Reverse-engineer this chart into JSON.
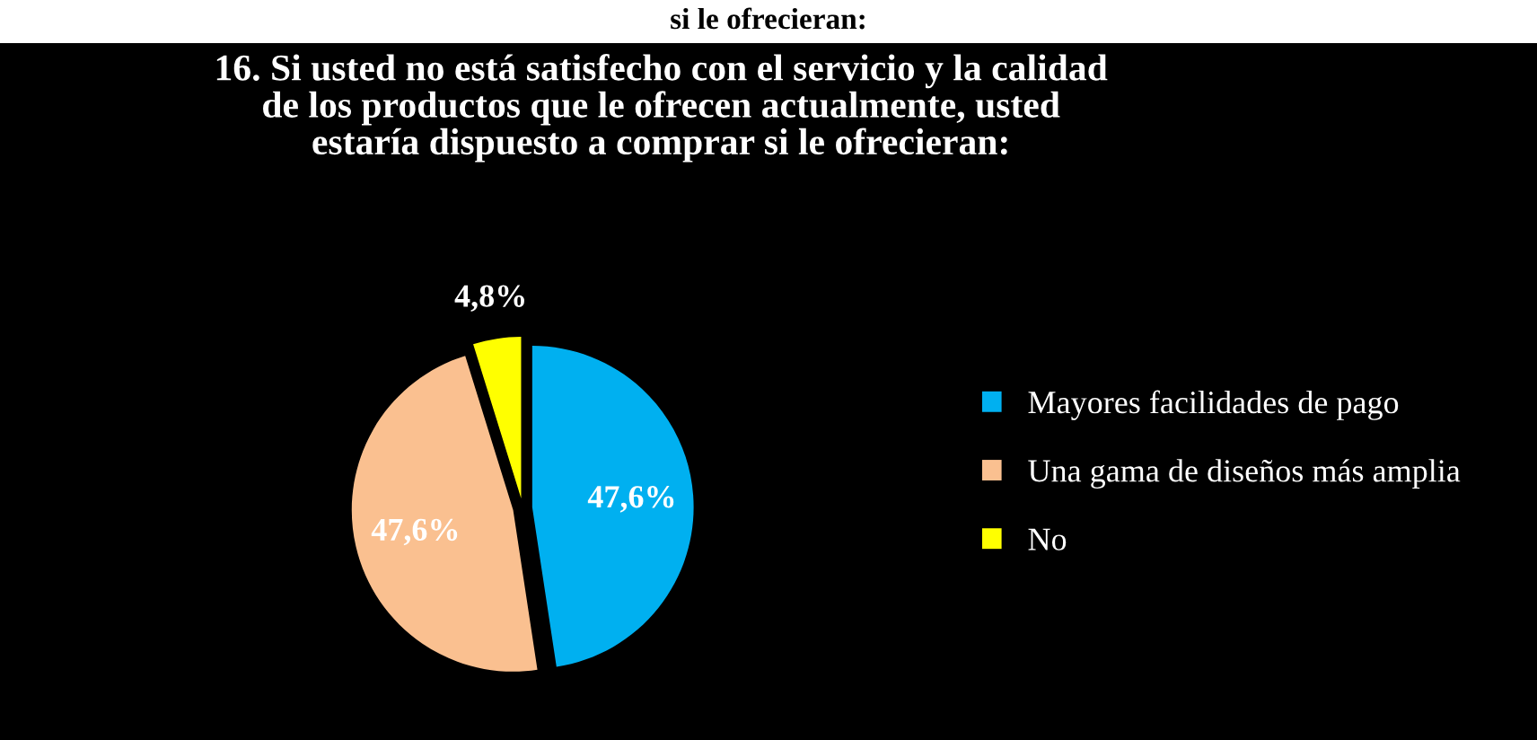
{
  "chart_data": {
    "type": "pie",
    "title": "16. Si usted no está satisfecho con el servicio y la calidad\nde los productos que le ofrecen actualmente, usted\nestaría dispuesto a comprar si le ofrecieran:",
    "annotations": [
      "si le ofrecieran:"
    ],
    "categories": [
      "Mayores facilidades de pago",
      "Una gama de diseños más amplia",
      "No"
    ],
    "values": [
      47.6,
      47.6,
      4.8
    ],
    "colors": [
      "#00b0f0",
      "#fac090",
      "#ffff00"
    ],
    "value_labels": [
      "47,6%",
      "47,6%",
      "4,8%"
    ],
    "legend": "right"
  }
}
